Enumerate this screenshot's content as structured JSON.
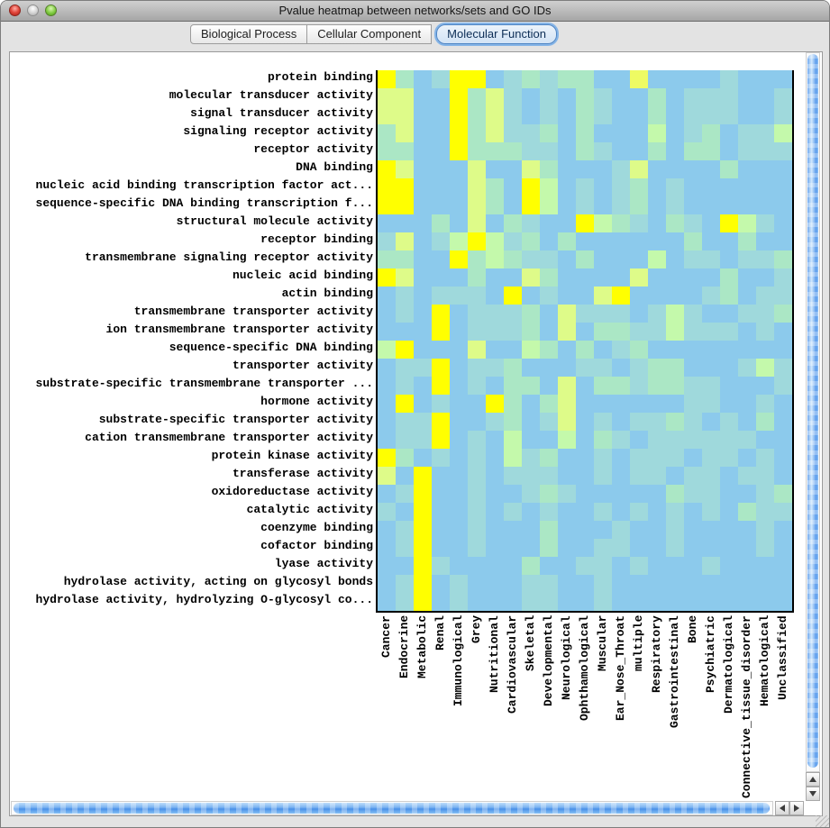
{
  "window": {
    "title": "Pvalue heatmap between networks/sets and GO IDs",
    "traffic_lights": [
      "close",
      "minimize",
      "zoom"
    ]
  },
  "tabs": [
    {
      "label": "Biological Process",
      "selected": false
    },
    {
      "label": "Cellular Component",
      "selected": false
    },
    {
      "label": "Molecular Function",
      "selected": true
    }
  ],
  "chart_data": {
    "type": "heatmap",
    "title": "Pvalue heatmap between networks/sets and GO IDs",
    "rows": [
      "protein binding",
      "molecular transducer activity",
      "signal transducer activity",
      "signaling receptor activity",
      "receptor activity",
      "DNA binding",
      "nucleic acid binding transcription factor act...",
      "sequence-specific DNA binding transcription f...",
      "structural molecule activity",
      "receptor binding",
      "transmembrane signaling receptor activity",
      "nucleic acid binding",
      "actin binding",
      "transmembrane transporter activity",
      "ion transmembrane transporter activity",
      "sequence-specific DNA binding",
      "transporter activity",
      "substrate-specific transmembrane transporter ...",
      "hormone activity",
      "substrate-specific transporter activity",
      "cation transmembrane transporter activity",
      "protein kinase activity",
      "transferase activity",
      "oxidoreductase activity",
      "catalytic activity",
      "coenzyme binding",
      "cofactor binding",
      "lyase activity",
      "hydrolase activity, acting on glycosyl bonds",
      "hydrolase activity, hydrolyzing O-glycosyl co..."
    ],
    "columns": [
      "Cancer",
      "Endocrine",
      "Metabolic",
      "Renal",
      "Immunological",
      "Grey",
      "Nutritional",
      "Cardiovascular",
      "Skeletal",
      "Developmental",
      "Neurological",
      "Ophthamological",
      "Muscular",
      "Ear_Nose_Throat",
      "multiple",
      "Respiratory",
      "Gastrointestinal",
      "Bone",
      "Psychiatric",
      "Dermatological",
      "Connective_tissue_disorder",
      "Hematological",
      "Unclassified"
    ],
    "palette": [
      "#8ccaec",
      "#9fd9dc",
      "#abe7c5",
      "#c4f9ab",
      "#defb89",
      "#eefb63",
      "#ffff00"
    ],
    "palette_scale": "0=light blue (weak) to 6=bright yellow (strong)",
    "grid": [
      "62016601212200500001000",
      "44006241010210020111001",
      "44006241010210020111001",
      "24006241120200030120113",
      "22006222110210020220111",
      "64000400420001400002000",
      "66000420630101201000000",
      "66000420630101201000000",
      "00020402100632102106310",
      "14013631202000000200200",
      "22006232110200030110112",
      "64000200420000400002001",
      "01011106010046000012011",
      "01060111204111013100112",
      "00060111204022113111010",
      "36000400320201200000000",
      "01160112000110122000131",
      "01060102204022122110001",
      "06010062024000000110010",
      "01160012014010112101020",
      "01160103003021011111100",
      "62010103120010111011010",
      "40600101110010110110110",
      "01600100121000002110012",
      "10600101010010101010211",
      "01600100020001001000010",
      "01600100020011001000010",
      "00610000200110100010000",
      "01601000110010000000000",
      "01601000110010000000000"
    ]
  }
}
